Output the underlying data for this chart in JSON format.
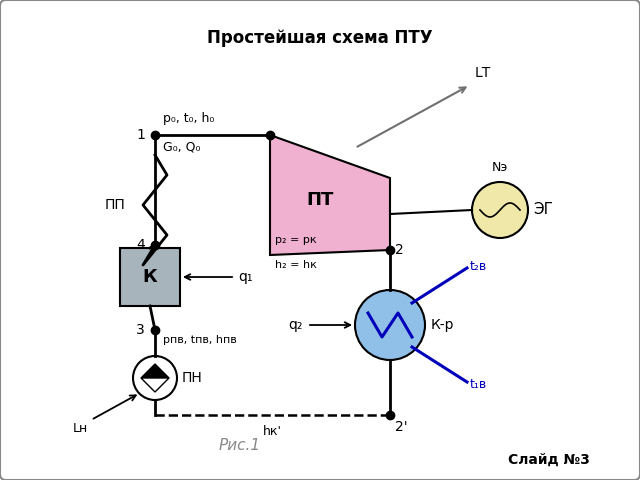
{
  "title": "Простейшая схема ПТУ",
  "fig_caption": "Рис.1",
  "slide_label": "Слайд №3",
  "bg_color": "#ffffff",
  "labels": {
    "point1": "1",
    "point2": "2",
    "point2p": "2'",
    "point3": "3",
    "point4": "4",
    "PP": "ПП",
    "PT": "ПТ",
    "EG": "ЭГ",
    "K": "К",
    "KR": "К-р",
    "PN": "ПН",
    "LT": "LТ",
    "NE": "Nэ",
    "LN": "Lн",
    "p0t0h0": "p₀, t₀, h₀",
    "G0Q0": "G₀, Q₀",
    "p2pk": "p₂ = pк",
    "h2hk": "h₂ = hк",
    "ppv": "pпв, tпв, hпв",
    "q1": "q₁",
    "q2": "q₂",
    "hkp": "hк'",
    "t2v": "t₂в",
    "t1v": "t₁в"
  },
  "colors": {
    "PT_fill": "#f0b0d0",
    "EG_fill": "#f0e8a8",
    "KR_fill": "#90c0e8",
    "K_fill": "#a8b4bc",
    "line": "#000000",
    "blue_diag": "#0000bb",
    "arrow_gray": "#707070"
  }
}
